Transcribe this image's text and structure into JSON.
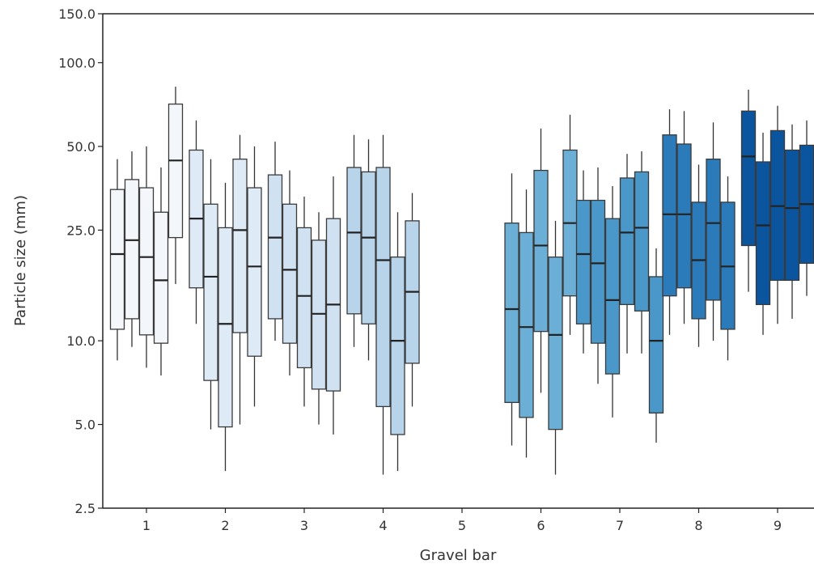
{
  "chart_data": {
    "type": "box",
    "title": "",
    "xlabel": "Gravel bar",
    "ylabel": "Particle size (mm)",
    "y_scale": "log",
    "ylim": [
      2.5,
      150.0
    ],
    "y_ticks": [
      2.5,
      5.0,
      10.0,
      25.0,
      50.0,
      100.0,
      150.0
    ],
    "y_tick_labels": [
      "2.5",
      "5.0",
      "10.0",
      "25.0",
      "50.0",
      "100.0",
      "150.0"
    ],
    "x_ticks": [
      "1",
      "2",
      "3",
      "4",
      "5",
      "6",
      "7",
      "8",
      "9"
    ],
    "grid": false,
    "legend": false,
    "groups": [
      {
        "bar": "1",
        "color": "#f3f7fc",
        "boxes": [
          {
            "whislo": 8.5,
            "q1": 11.0,
            "med": 20.5,
            "q3": 35.0,
            "whishi": 45.0
          },
          {
            "whislo": 9.5,
            "q1": 12.0,
            "med": 23.0,
            "q3": 38.0,
            "whishi": 48.0
          },
          {
            "whislo": 8.0,
            "q1": 10.5,
            "med": 20.0,
            "q3": 35.5,
            "whishi": 50.0
          },
          {
            "whislo": 7.5,
            "q1": 9.8,
            "med": 16.5,
            "q3": 29.0,
            "whishi": 42.0
          },
          {
            "whislo": 16.0,
            "q1": 23.5,
            "med": 44.5,
            "q3": 71.0,
            "whishi": 82.0
          }
        ]
      },
      {
        "bar": "2",
        "color": "#deebf7",
        "boxes": [
          {
            "whislo": 11.5,
            "q1": 15.5,
            "med": 27.5,
            "q3": 48.5,
            "whishi": 62.0
          },
          {
            "whislo": 4.8,
            "q1": 7.2,
            "med": 17.0,
            "q3": 31.0,
            "whishi": 45.0
          },
          {
            "whislo": 3.4,
            "q1": 4.9,
            "med": 11.5,
            "q3": 25.5,
            "whishi": 37.0
          },
          {
            "whislo": 5.0,
            "q1": 10.7,
            "med": 25.0,
            "q3": 45.0,
            "whishi": 55.0
          },
          {
            "whislo": 5.8,
            "q1": 8.8,
            "med": 18.5,
            "q3": 35.5,
            "whishi": 50.0
          }
        ]
      },
      {
        "bar": "3",
        "color": "#d0e1f2",
        "boxes": [
          {
            "whislo": 10.0,
            "q1": 12.0,
            "med": 23.5,
            "q3": 39.5,
            "whishi": 52.0
          },
          {
            "whislo": 7.5,
            "q1": 9.8,
            "med": 18.0,
            "q3": 31.0,
            "whishi": 41.0
          },
          {
            "whislo": 5.8,
            "q1": 8.0,
            "med": 14.5,
            "q3": 25.5,
            "whishi": 33.0
          },
          {
            "whislo": 5.0,
            "q1": 6.7,
            "med": 12.5,
            "q3": 23.0,
            "whishi": 29.0
          },
          {
            "whislo": 4.6,
            "q1": 6.6,
            "med": 13.5,
            "q3": 27.5,
            "whishi": 39.0
          }
        ]
      },
      {
        "bar": "4",
        "color": "#b7d4ea",
        "boxes": [
          {
            "whislo": 9.5,
            "q1": 12.5,
            "med": 24.5,
            "q3": 42.0,
            "whishi": 55.0
          },
          {
            "whislo": 8.5,
            "q1": 11.5,
            "med": 23.5,
            "q3": 40.5,
            "whishi": 53.0
          },
          {
            "whislo": 3.3,
            "q1": 5.8,
            "med": 19.5,
            "q3": 42.0,
            "whishi": 55.0
          },
          {
            "whislo": 3.4,
            "q1": 4.6,
            "med": 10.0,
            "q3": 20.0,
            "whishi": 29.0
          },
          {
            "whislo": 5.8,
            "q1": 8.3,
            "med": 15.0,
            "q3": 27.0,
            "whishi": 34.0
          }
        ]
      },
      {
        "bar": "5",
        "color": "#9ecae1",
        "boxes": []
      },
      {
        "bar": "6",
        "color": "#6baed6",
        "boxes": [
          {
            "whislo": 4.2,
            "q1": 6.0,
            "med": 13.0,
            "q3": 26.5,
            "whishi": 40.0
          },
          {
            "whislo": 3.8,
            "q1": 5.3,
            "med": 11.2,
            "q3": 24.5,
            "whishi": 35.0
          },
          {
            "whislo": 6.5,
            "q1": 10.8,
            "med": 22.0,
            "q3": 41.0,
            "whishi": 58.0
          },
          {
            "whislo": 3.3,
            "q1": 4.8,
            "med": 10.5,
            "q3": 20.0,
            "whishi": 27.0
          },
          {
            "whislo": 10.5,
            "q1": 14.5,
            "med": 26.5,
            "q3": 48.5,
            "whishi": 65.0
          }
        ]
      },
      {
        "bar": "7",
        "color": "#4a98c9",
        "boxes": [
          {
            "whislo": 9.0,
            "q1": 11.5,
            "med": 20.5,
            "q3": 32.0,
            "whishi": 41.0
          },
          {
            "whislo": 7.0,
            "q1": 9.8,
            "med": 19.0,
            "q3": 32.0,
            "whishi": 42.0
          },
          {
            "whislo": 5.3,
            "q1": 7.6,
            "med": 14.0,
            "q3": 27.5,
            "whishi": 36.0
          },
          {
            "whislo": 9.0,
            "q1": 13.5,
            "med": 24.5,
            "q3": 38.5,
            "whishi": 47.0
          },
          {
            "whislo": 9.0,
            "q1": 12.8,
            "med": 25.5,
            "q3": 40.5,
            "whishi": 48.0
          },
          {
            "whislo": 4.3,
            "q1": 5.5,
            "med": 10.0,
            "q3": 17.0,
            "whishi": 21.5
          }
        ]
      },
      {
        "bar": "8",
        "color": "#2b7bba",
        "boxes": [
          {
            "whislo": 10.5,
            "q1": 14.5,
            "med": 28.5,
            "q3": 55.0,
            "whishi": 68.0
          },
          {
            "whislo": 11.5,
            "q1": 15.5,
            "med": 28.5,
            "q3": 51.0,
            "whishi": 67.0
          },
          {
            "whislo": 9.5,
            "q1": 12.0,
            "med": 19.5,
            "q3": 31.5,
            "whishi": 43.0
          },
          {
            "whislo": 10.0,
            "q1": 14.0,
            "med": 26.5,
            "q3": 45.0,
            "whishi": 61.0
          },
          {
            "whislo": 8.5,
            "q1": 11.0,
            "med": 18.5,
            "q3": 31.5,
            "whishi": 39.0
          }
        ]
      },
      {
        "bar": "9",
        "color": "#0b559f",
        "boxes": [
          {
            "whislo": 15.0,
            "q1": 22.0,
            "med": 46.0,
            "q3": 67.0,
            "whishi": 80.0
          },
          {
            "whislo": 10.5,
            "q1": 13.5,
            "med": 26.0,
            "q3": 44.0,
            "whishi": 56.0
          },
          {
            "whislo": 11.5,
            "q1": 16.5,
            "med": 30.5,
            "q3": 57.0,
            "whishi": 70.0
          },
          {
            "whislo": 12.0,
            "q1": 16.5,
            "med": 30.0,
            "q3": 48.5,
            "whishi": 60.0
          },
          {
            "whislo": 14.5,
            "q1": 19.0,
            "med": 31.0,
            "q3": 50.5,
            "whishi": 62.0
          }
        ]
      }
    ]
  }
}
